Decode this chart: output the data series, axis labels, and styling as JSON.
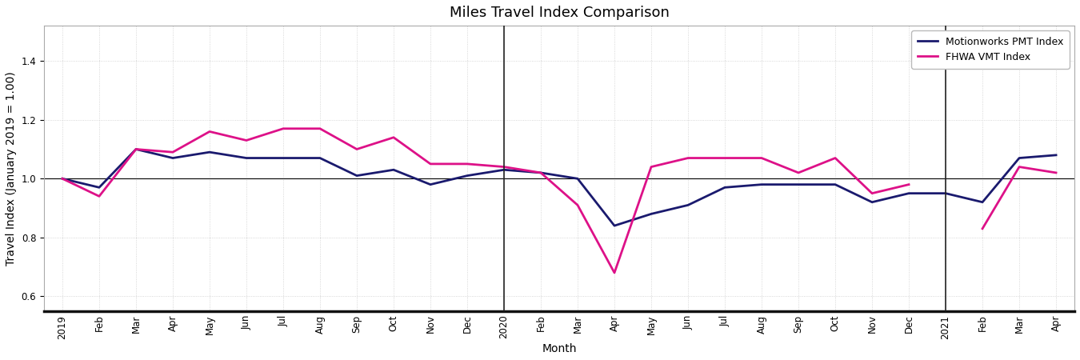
{
  "title": "Miles Travel Index Comparison",
  "xlabel": "Month",
  "ylabel": "Travel Index (January 2019 = 1.00)",
  "ylim": [
    0.55,
    1.52
  ],
  "yticks": [
    0.6,
    0.8,
    1.0,
    1.2,
    1.4
  ],
  "legend_labels": [
    "Motionworks PMT Index",
    "FHWA VMT Index"
  ],
  "pmt_color": "#1a1a6e",
  "vmt_color": "#dd1188",
  "background_color": "#ffffff",
  "vline_color": "#222222",
  "hline_color": "#000000",
  "grid_color": "#cccccc",
  "tick_labels": [
    "2019",
    "Feb",
    "Mar",
    "Apr",
    "May",
    "Jun",
    "Jul",
    "Aug",
    "Sep",
    "Oct",
    "Nov",
    "Dec",
    "2020",
    "Feb",
    "Mar",
    "Apr",
    "May",
    "Jun",
    "Jul",
    "Aug",
    "Sep",
    "Oct",
    "Nov",
    "Dec",
    "2021",
    "Feb",
    "Mar",
    "Apr"
  ],
  "pmt_values": [
    1.0,
    0.97,
    1.1,
    1.07,
    1.09,
    1.07,
    1.07,
    1.07,
    1.01,
    1.03,
    0.98,
    1.01,
    1.03,
    1.02,
    1.0,
    0.84,
    0.88,
    0.91,
    0.97,
    0.98,
    0.98,
    0.98,
    0.92,
    0.95,
    0.95,
    0.92,
    1.07,
    1.08
  ],
  "vmt_values": [
    1.0,
    0.94,
    1.1,
    1.09,
    1.16,
    1.13,
    1.17,
    1.17,
    1.1,
    1.14,
    1.05,
    1.05,
    1.04,
    1.02,
    0.91,
    0.68,
    1.04,
    1.07,
    1.07,
    1.07,
    1.02,
    1.07,
    0.95,
    0.98,
    null,
    0.83,
    1.04,
    1.02
  ],
  "vline_positions": [
    12,
    24
  ],
  "title_fontsize": 13,
  "label_fontsize": 10,
  "tick_fontsize": 8.5,
  "legend_fontsize": 9,
  "line_width": 2.0
}
